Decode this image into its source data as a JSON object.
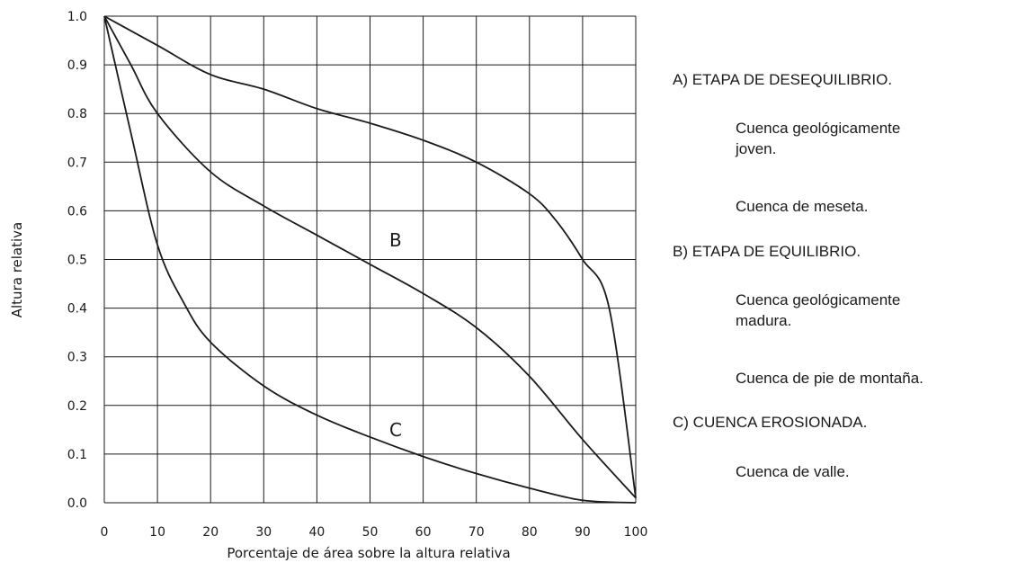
{
  "chart_data": {
    "type": "line",
    "title": "",
    "xlabel": "Porcentaje de área sobre la altura relativa",
    "ylabel": "Altura relativa",
    "xlim": [
      0,
      100
    ],
    "ylim": [
      0,
      1.0
    ],
    "grid": true,
    "x_ticks": [
      "0",
      "10",
      "20",
      "30",
      "40",
      "50",
      "60",
      "70",
      "80",
      "90",
      "100"
    ],
    "y_ticks": [
      "0.0",
      "0.1",
      "0.2",
      "0.3",
      "0.4",
      "0.5",
      "0.6",
      "0.7",
      "0.8",
      "0.9",
      "1.0"
    ],
    "series": [
      {
        "name": "",
        "x": [
          0,
          10,
          20,
          30,
          40,
          50,
          60,
          70,
          80,
          85,
          90,
          95,
          100
        ],
        "y": [
          1.0,
          0.94,
          0.88,
          0.85,
          0.81,
          0.78,
          0.745,
          0.7,
          0.635,
          0.58,
          0.5,
          0.4,
          0.01
        ]
      },
      {
        "name": "",
        "x": [
          0,
          5,
          10,
          20,
          30,
          40,
          50,
          60,
          70,
          80,
          90,
          100
        ],
        "y": [
          1.0,
          0.9,
          0.8,
          0.68,
          0.61,
          0.55,
          0.49,
          0.43,
          0.36,
          0.26,
          0.13,
          0.01
        ]
      },
      {
        "name": "",
        "x": [
          0,
          5,
          10,
          15,
          20,
          30,
          40,
          50,
          60,
          70,
          80,
          90,
          100
        ],
        "y": [
          1.0,
          0.76,
          0.53,
          0.41,
          0.33,
          0.24,
          0.18,
          0.135,
          0.095,
          0.06,
          0.03,
          0.005,
          0.0
        ]
      }
    ],
    "annotations": [
      {
        "text": "B",
        "x": 55,
        "y": 0.54
      },
      {
        "text": "C",
        "x": 55,
        "y": 0.15
      }
    ]
  },
  "legend": {
    "a_title": "A) ETAPA DE DESEQUILIBRIO.",
    "a_desc_1": "Cuenca geológicamente joven.",
    "a_desc_2": "Cuenca de meseta.",
    "b_title": "B) ETAPA DE EQUILIBRIO.",
    "b_desc_1": "Cuenca geológicamente madura.",
    "b_desc_2": "Cuenca de pie de montaña.",
    "c_title": "C) CUENCA EROSIONADA.",
    "c_desc_1": "Cuenca de valle."
  }
}
